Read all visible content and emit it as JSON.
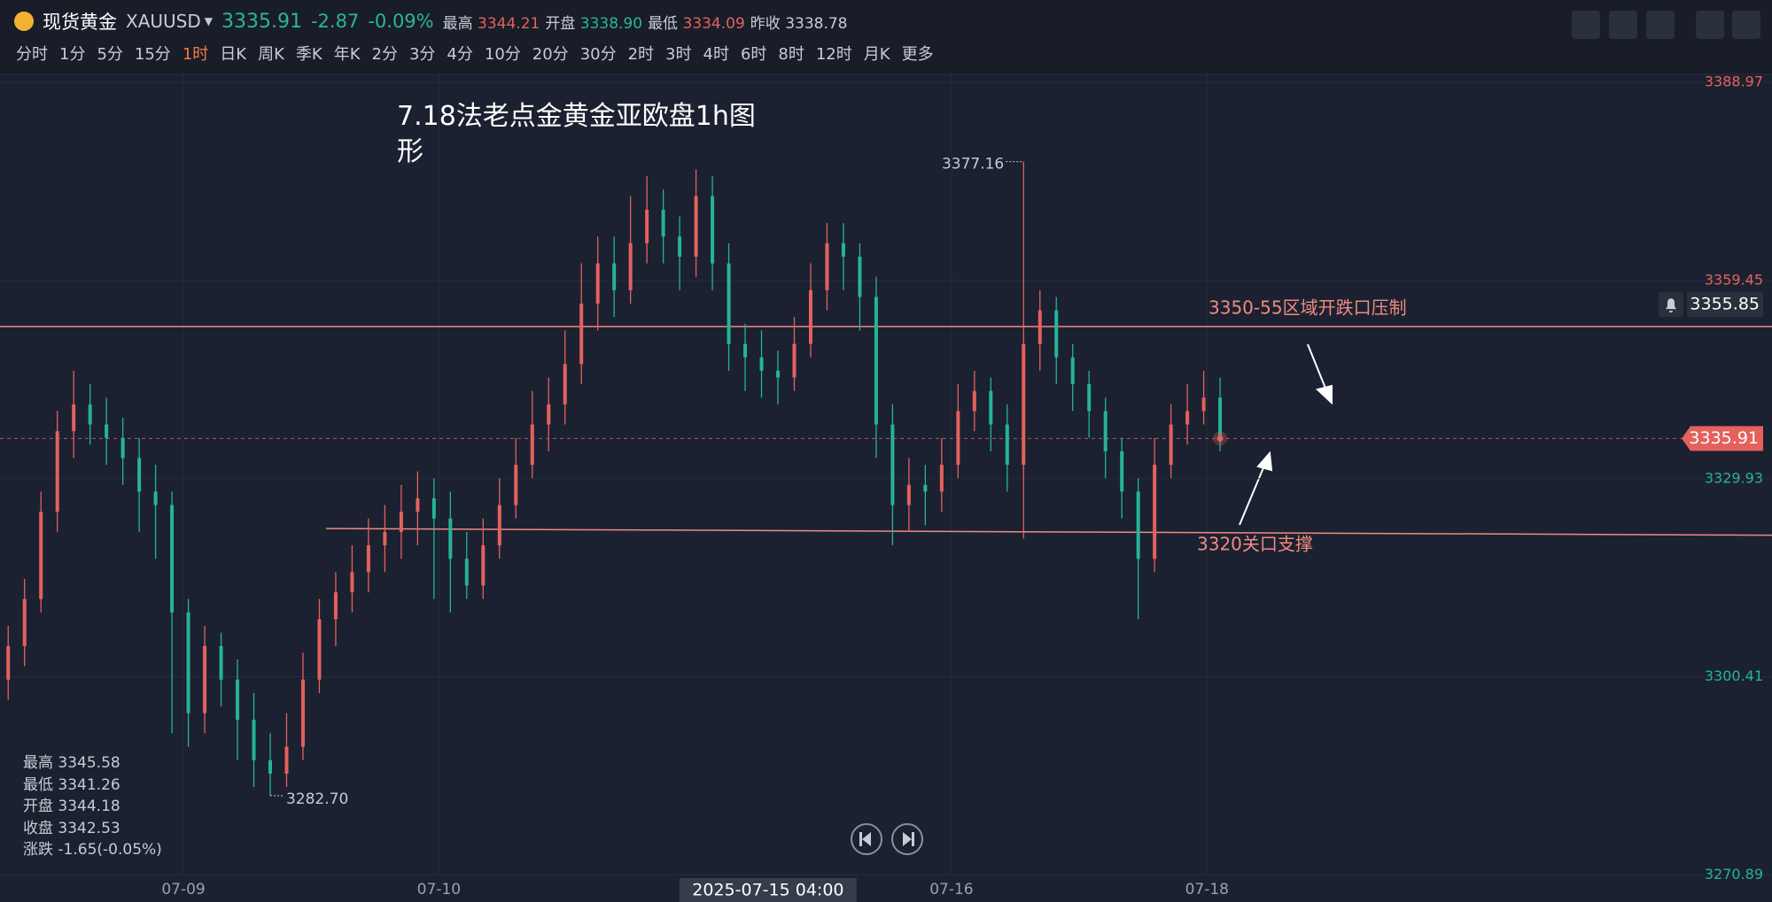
{
  "header": {
    "name": "现货黄金",
    "symbol": "XAUUSD",
    "change": "-2.87",
    "change_pct": "-0.09%",
    "stats": [
      {
        "label": "最高",
        "value": "3344.21"
      },
      {
        "label": "开盘",
        "value": "3338.90"
      },
      {
        "label": "最低",
        "value": "3334.09"
      },
      {
        "label": "昨收",
        "value": "3338.78"
      }
    ],
    "tabs": [
      "分时",
      "1分",
      "5分",
      "15分",
      "1时",
      "日K",
      "周K",
      "季K",
      "年K",
      "2分",
      "3分",
      "4分",
      "10分",
      "20分",
      "30分",
      "2时",
      "3时",
      "4时",
      "6时",
      "8时",
      "12时",
      "月K",
      "更多"
    ],
    "active_tab": "1时"
  },
  "info": [
    {
      "label": "最高",
      "value": "3345.58"
    },
    {
      "label": "最低",
      "value": "3341.26"
    },
    {
      "label": "开盘",
      "value": "3344.18"
    },
    {
      "label": "收盘",
      "value": "3342.53"
    },
    {
      "label": "涨跌",
      "value": "-1.65(-0.05%)"
    }
  ],
  "chart_data": {
    "type": "candlestick",
    "annotation": "7.18法老点金黄金亚欧盘1h图形",
    "up_color": "#e4615e",
    "down_color": "#26b39a",
    "last": 3335.91,
    "alert_price": 3355.85,
    "max_label": "3377.16",
    "min_label": "3282.70",
    "xlim": [
      -0.5,
      107.7
    ],
    "ylim": [
      3270.89,
      3388.97
    ],
    "yticks": [
      3270.89,
      3300.41,
      3329.93,
      3359.45,
      3388.97
    ],
    "xticks": [
      {
        "value": 10.7,
        "label": "07-09"
      },
      {
        "value": 26.3,
        "label": "07-10"
      },
      {
        "value": 57.6,
        "label": "07-16"
      },
      {
        "value": 73.2,
        "label": "07-18"
      }
    ],
    "crosshair": {
      "x": 46.4,
      "label": "2025-07-15 04:00"
    },
    "levels": [
      {
        "label": "3350-55区域开跌口压制",
        "x": [
          -0.5,
          107.7
        ],
        "y": [
          3352.6,
          3352.6
        ],
        "color": "#f08a80"
      },
      {
        "label": "3320关口支撑",
        "x": [
          19.4,
          107.7
        ],
        "y": [
          3322.5,
          3321.5
        ],
        "color": "#f08a80"
      }
    ],
    "ohlc": [
      [
        3300,
        3308,
        3297,
        3305
      ],
      [
        3305,
        3315,
        3302,
        3312
      ],
      [
        3312,
        3328,
        3310,
        3325
      ],
      [
        3325,
        3340,
        3322,
        3337
      ],
      [
        3337,
        3346,
        3333,
        3341
      ],
      [
        3341,
        3344,
        3335,
        3338
      ],
      [
        3338,
        3342,
        3332,
        3336
      ],
      [
        3336,
        3339,
        3329,
        3333
      ],
      [
        3333,
        3336,
        3322,
        3328
      ],
      [
        3328,
        3332,
        3318,
        3326
      ],
      [
        3326,
        3328,
        3292,
        3310
      ],
      [
        3310,
        3312,
        3290,
        3295
      ],
      [
        3295,
        3308,
        3292,
        3305
      ],
      [
        3305,
        3307,
        3296,
        3300
      ],
      [
        3300,
        3303,
        3288,
        3294
      ],
      [
        3294,
        3298,
        3284,
        3288
      ],
      [
        3288,
        3292,
        3282.7,
        3286
      ],
      [
        3286,
        3295,
        3284,
        3290
      ],
      [
        3290,
        3304,
        3288,
        3300
      ],
      [
        3300,
        3312,
        3298,
        3309
      ],
      [
        3309,
        3316,
        3305,
        3313
      ],
      [
        3313,
        3320,
        3310,
        3316
      ],
      [
        3316,
        3324,
        3313,
        3320
      ],
      [
        3320,
        3326,
        3316,
        3322
      ],
      [
        3322,
        3329,
        3318,
        3325
      ],
      [
        3325,
        3331,
        3320,
        3327
      ],
      [
        3327,
        3330,
        3312,
        3324
      ],
      [
        3324,
        3328,
        3310,
        3318
      ],
      [
        3318,
        3322,
        3312,
        3314
      ],
      [
        3314,
        3324,
        3312,
        3320
      ],
      [
        3320,
        3330,
        3318,
        3326
      ],
      [
        3326,
        3336,
        3324,
        3332
      ],
      [
        3332,
        3343,
        3330,
        3338
      ],
      [
        3338,
        3345,
        3334,
        3341
      ],
      [
        3341,
        3352,
        3338,
        3347
      ],
      [
        3347,
        3362,
        3344,
        3356
      ],
      [
        3356,
        3366,
        3352,
        3362
      ],
      [
        3362,
        3366,
        3354,
        3358
      ],
      [
        3358,
        3372,
        3356,
        3365
      ],
      [
        3365,
        3375,
        3362,
        3370
      ],
      [
        3370,
        3373,
        3362,
        3366
      ],
      [
        3366,
        3369,
        3358,
        3363
      ],
      [
        3363,
        3376,
        3360,
        3372
      ],
      [
        3372,
        3375,
        3358,
        3362
      ],
      [
        3362,
        3365,
        3346,
        3350
      ],
      [
        3350,
        3353,
        3343,
        3348
      ],
      [
        3348,
        3352,
        3342,
        3346
      ],
      [
        3346,
        3349,
        3341,
        3345
      ],
      [
        3345,
        3354,
        3343,
        3350
      ],
      [
        3350,
        3362,
        3348,
        3358
      ],
      [
        3358,
        3368,
        3355,
        3365
      ],
      [
        3365,
        3368,
        3358,
        3363
      ],
      [
        3363,
        3365,
        3352,
        3357
      ],
      [
        3357,
        3360,
        3333,
        3338
      ],
      [
        3338,
        3341,
        3320,
        3326
      ],
      [
        3326,
        3333,
        3322,
        3329
      ],
      [
        3329,
        3332,
        3323,
        3328
      ],
      [
        3328,
        3336,
        3325,
        3332
      ],
      [
        3332,
        3344,
        3330,
        3340
      ],
      [
        3340,
        3346,
        3337,
        3343
      ],
      [
        3343,
        3345,
        3334,
        3338
      ],
      [
        3338,
        3341,
        3328,
        3332
      ],
      [
        3332,
        3377.16,
        3321,
        3350
      ],
      [
        3350,
        3358,
        3346,
        3355
      ],
      [
        3355,
        3357,
        3344,
        3348
      ],
      [
        3348,
        3350,
        3340,
        3344
      ],
      [
        3344,
        3346,
        3336,
        3340
      ],
      [
        3340,
        3342,
        3330,
        3334
      ],
      [
        3334,
        3336,
        3324,
        3328
      ],
      [
        3328,
        3330,
        3309,
        3318
      ],
      [
        3318,
        3336,
        3316,
        3332
      ],
      [
        3332,
        3341,
        3330,
        3338
      ],
      [
        3338,
        3344,
        3335,
        3340
      ],
      [
        3340,
        3346,
        3338,
        3342
      ],
      [
        3342,
        3345,
        3334,
        3335.91
      ]
    ]
  }
}
